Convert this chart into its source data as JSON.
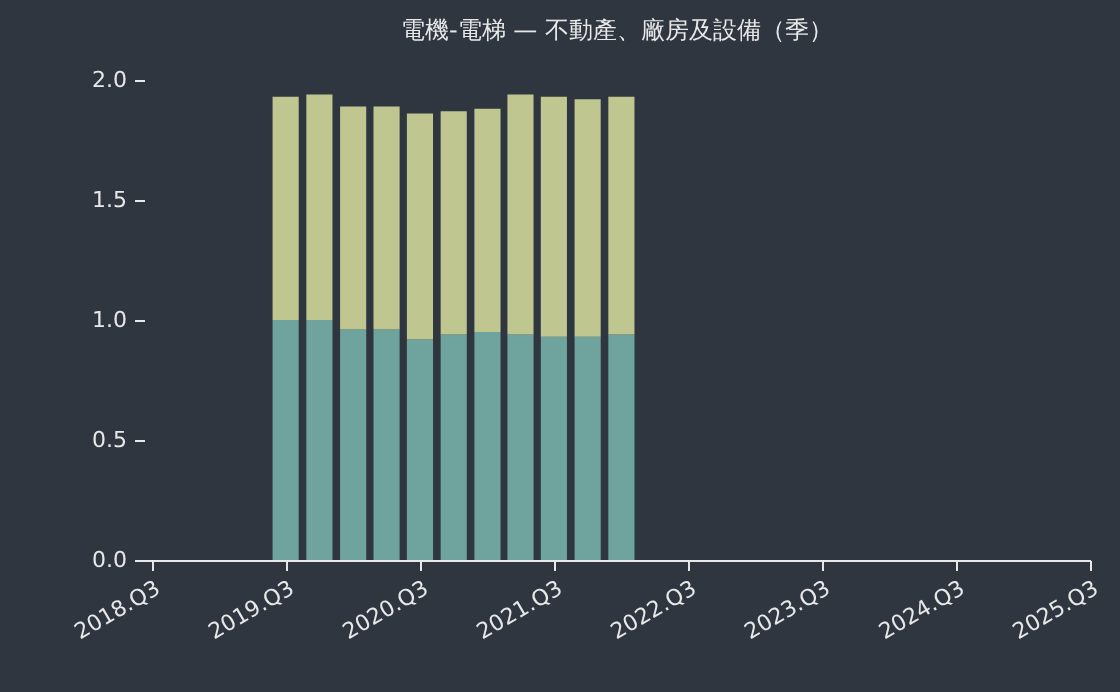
{
  "chart_data": {
    "type": "bar",
    "stacked": true,
    "title": "電機-電梯 — 不動產、廠房及設備（季）",
    "x": [
      "2019-07",
      "2019-10",
      "2020-01",
      "2020-04",
      "2020-07",
      "2020-10",
      "2021-01",
      "2021-04",
      "2021-07",
      "2021-10",
      "2022-01"
    ],
    "series": [
      {
        "color": "#6fa39d",
        "values": [
          1.0,
          1.0,
          0.96,
          0.96,
          0.92,
          0.94,
          0.95,
          0.94,
          0.93,
          0.93,
          0.94
        ]
      },
      {
        "color": "#c0c68f",
        "values": [
          0.93,
          0.94,
          0.93,
          0.93,
          0.94,
          0.93,
          0.93,
          1.0,
          1.0,
          0.99,
          0.99
        ]
      }
    ],
    "xlim": [
      "2018-06-10",
      "2025-07"
    ],
    "xticks": [
      {
        "value": "2018-07",
        "label": "2018.Q3"
      },
      {
        "value": "2019-07",
        "label": "2019.Q3"
      },
      {
        "value": "2020-07",
        "label": "2020.Q3"
      },
      {
        "value": "2021-07",
        "label": "2021.Q3"
      },
      {
        "value": "2022-07",
        "label": "2022.Q3"
      },
      {
        "value": "2023-07",
        "label": "2023.Q3"
      },
      {
        "value": "2024-07",
        "label": "2024.Q3"
      },
      {
        "value": "2025-07",
        "label": "2025.Q3"
      }
    ],
    "ylim": [
      0,
      2.0
    ],
    "yticks": [
      {
        "value": 0,
        "label": "0.0"
      },
      {
        "value": 0.5,
        "label": "0.5"
      },
      {
        "value": 1.0,
        "label": "1.0"
      },
      {
        "value": 1.5,
        "label": "1.5"
      },
      {
        "value": 2.0,
        "label": "2.0"
      }
    ],
    "grid": false
  }
}
